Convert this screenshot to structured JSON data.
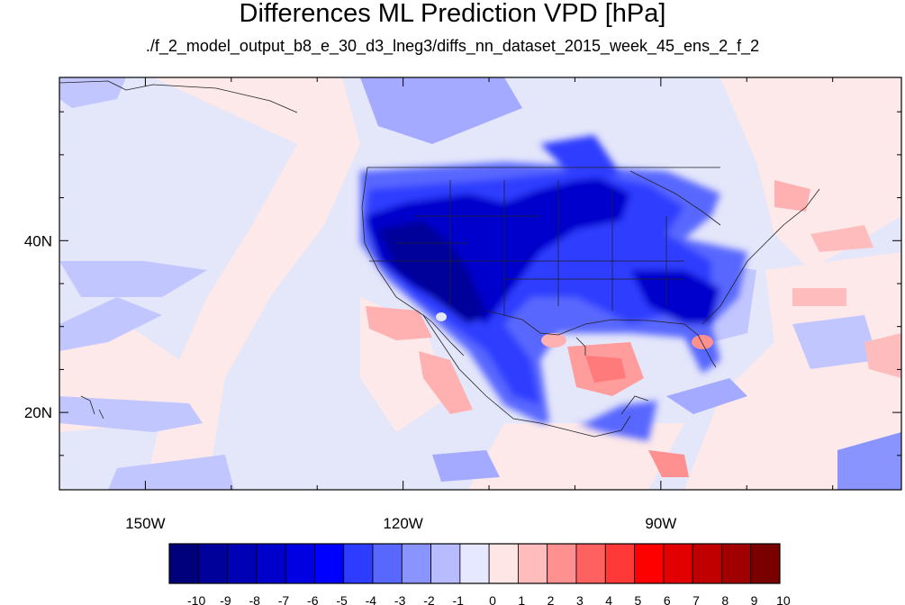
{
  "title": "Differences ML Prediction VPD [hPa]",
  "subtitle": "./f_2_model_output_b8_e_30_d3_lneg3/diffs_nn_dataset_2015_week_45_ens_2_f_2",
  "map": {
    "lon_range": [
      -160,
      -62
    ],
    "lat_range": [
      11,
      59
    ],
    "lon_ticks": [
      {
        "value": -150,
        "label": "150W"
      },
      {
        "value": -120,
        "label": "120W"
      },
      {
        "value": -90,
        "label": "90W"
      }
    ],
    "lat_ticks": [
      {
        "value": 40,
        "label": "40N"
      },
      {
        "value": 20,
        "label": "20N"
      }
    ]
  },
  "colorbar": {
    "labels": [
      "-10",
      "-9",
      "-8",
      "-7",
      "-6",
      "-5",
      "-4",
      "-3",
      "-2",
      "-1",
      "0",
      "1",
      "2",
      "3",
      "4",
      "5",
      "6",
      "7",
      "8",
      "9",
      "10"
    ],
    "colors": [
      "#00007a",
      "#00009a",
      "#0000b4",
      "#0000cc",
      "#0000e2",
      "#0000ff",
      "#2d3cff",
      "#5868ff",
      "#8a94ff",
      "#b8bcff",
      "#e6e8ff",
      "#ffe6e6",
      "#ffbcbc",
      "#ff9090",
      "#ff6060",
      "#ff3838",
      "#ff0000",
      "#e20000",
      "#c00000",
      "#a00000",
      "#7a0000"
    ]
  },
  "colors": {
    "ocean_light_blue": "#e4e6fa",
    "ocean_light_red": "#fde9e9"
  }
}
